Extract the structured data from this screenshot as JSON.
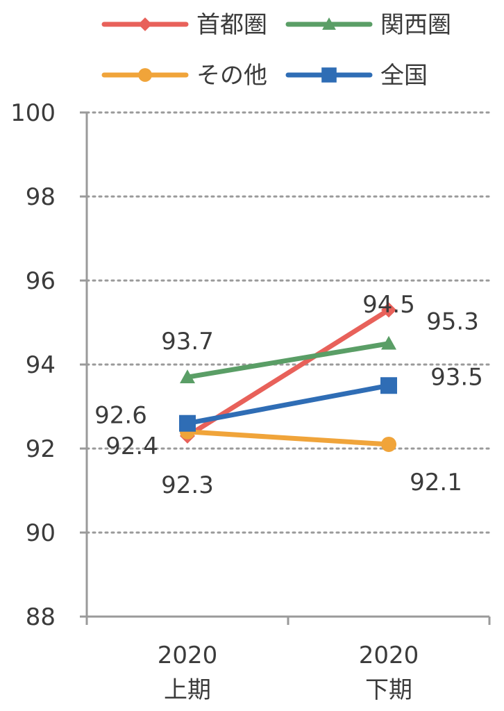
{
  "chart_data": {
    "type": "line",
    "categories": [
      [
        "2020",
        "上期"
      ],
      [
        "2020",
        "下期"
      ]
    ],
    "series": [
      {
        "name": "首都圏",
        "marker": "diamond",
        "color": "#e8615a",
        "values": [
          92.3,
          95.3
        ]
      },
      {
        "name": "関西圏",
        "marker": "triangle",
        "color": "#5a9e66",
        "values": [
          93.7,
          94.5
        ]
      },
      {
        "name": "その他",
        "marker": "circle",
        "color": "#f0a43a",
        "values": [
          92.4,
          92.1
        ]
      },
      {
        "name": "全国",
        "marker": "square",
        "color": "#2f6db5",
        "values": [
          92.6,
          93.5
        ]
      }
    ],
    "ylim": [
      88,
      100
    ],
    "yticks": [
      88,
      90,
      92,
      94,
      96,
      98,
      100
    ],
    "grid": true,
    "legend": "top",
    "title": "",
    "xlabel": "",
    "ylabel": ""
  }
}
